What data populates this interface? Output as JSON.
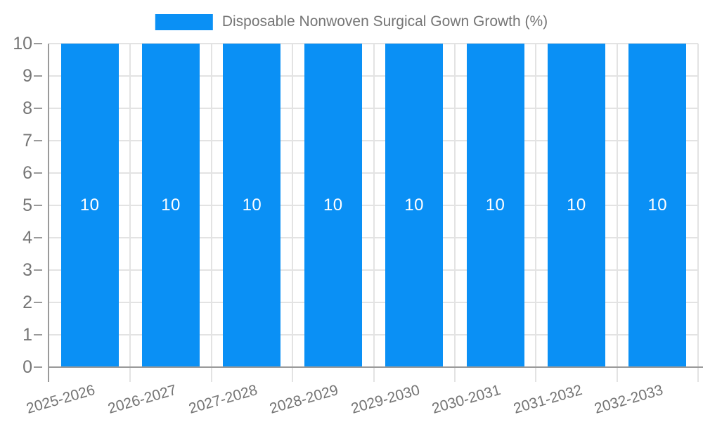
{
  "chart_data": {
    "type": "bar",
    "title": "Disposable Nonwoven Surgical Gown Growth (%)",
    "legend": {
      "position": "top",
      "label": "Disposable Nonwoven Surgical Gown Growth (%)"
    },
    "categories": [
      "2025-2026",
      "2026-2027",
      "2027-2028",
      "2028-2029",
      "2029-2030",
      "2030-2031",
      "2031-2032",
      "2032-2033"
    ],
    "series": [
      {
        "name": "Disposable Nonwoven Surgical Gown Growth (%)",
        "values": [
          10,
          10,
          10,
          10,
          10,
          10,
          10,
          10
        ]
      }
    ],
    "bar_value_labels": [
      "10",
      "10",
      "10",
      "10",
      "10",
      "10",
      "10",
      "10"
    ],
    "xlabel": "",
    "ylabel": "",
    "ylim": [
      0,
      10
    ],
    "yticks": [
      0,
      1,
      2,
      3,
      4,
      5,
      6,
      7,
      8,
      9,
      10
    ],
    "grid": true,
    "colors": {
      "bar": "#0a90f5",
      "grid": "#e3e3e3",
      "axis": "#9a9a9a",
      "tick": "#9a9a9a",
      "text": "#757575",
      "bar_label": "#ffffff",
      "background": "#ffffff"
    }
  }
}
